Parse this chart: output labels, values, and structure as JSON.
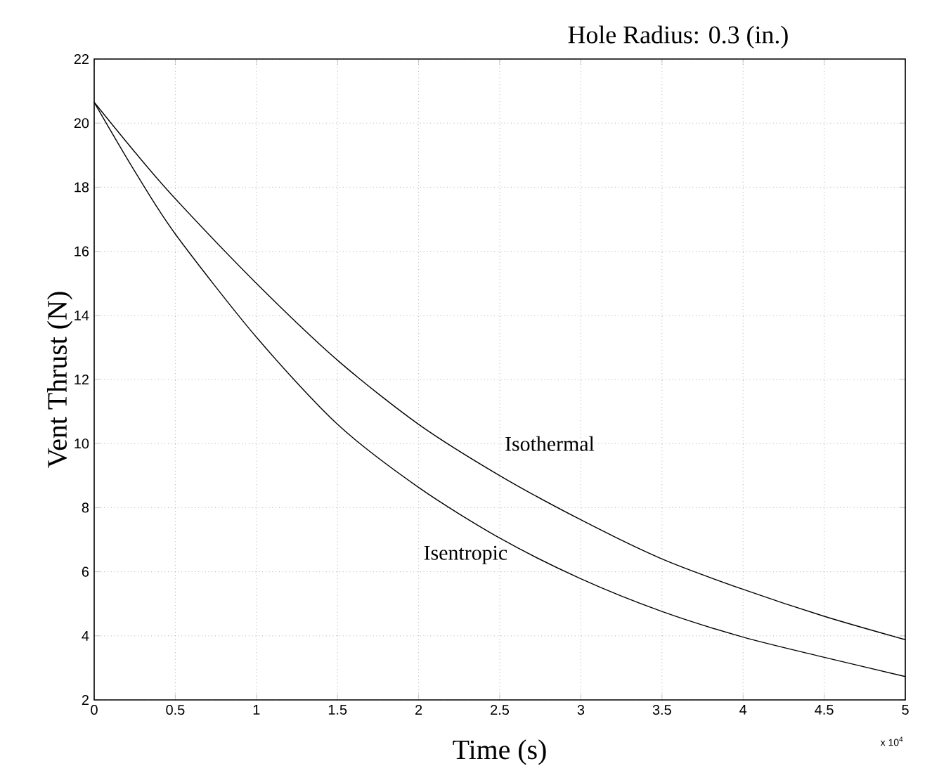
{
  "chart_data": {
    "type": "line",
    "title": "Hole Radius: 0.3 (in.)",
    "xlabel": "Time (s)",
    "ylabel": "Vent Thrust (N)",
    "xlim": [
      0,
      5
    ],
    "ylim": [
      2,
      22
    ],
    "xticks": [
      0,
      0.5,
      1,
      1.5,
      2,
      2.5,
      3,
      3.5,
      4,
      4.5,
      5
    ],
    "yticks": [
      2,
      4,
      6,
      8,
      10,
      12,
      14,
      16,
      18,
      20,
      22
    ],
    "grid": true,
    "marker": "none",
    "line_style": "solid",
    "annotations": [
      "x 10$^{4}$"
    ],
    "x": [
      0,
      0.25,
      0.5,
      1,
      1.5,
      2,
      2.5,
      3,
      3.5,
      4,
      4.5,
      5
    ],
    "series": [
      {
        "name": "Isothermal",
        "color": "#000000",
        "values": [
          20.65,
          19.1,
          17.64,
          15.0,
          12.6,
          10.6,
          9.0,
          7.62,
          6.4,
          5.45,
          4.61,
          3.88
        ]
      },
      {
        "name": "Isentropic",
        "color": "#000000",
        "values": [
          20.65,
          18.5,
          16.54,
          13.32,
          10.6,
          8.63,
          7.05,
          5.78,
          4.76,
          3.96,
          3.33,
          2.73
        ]
      }
    ]
  }
}
